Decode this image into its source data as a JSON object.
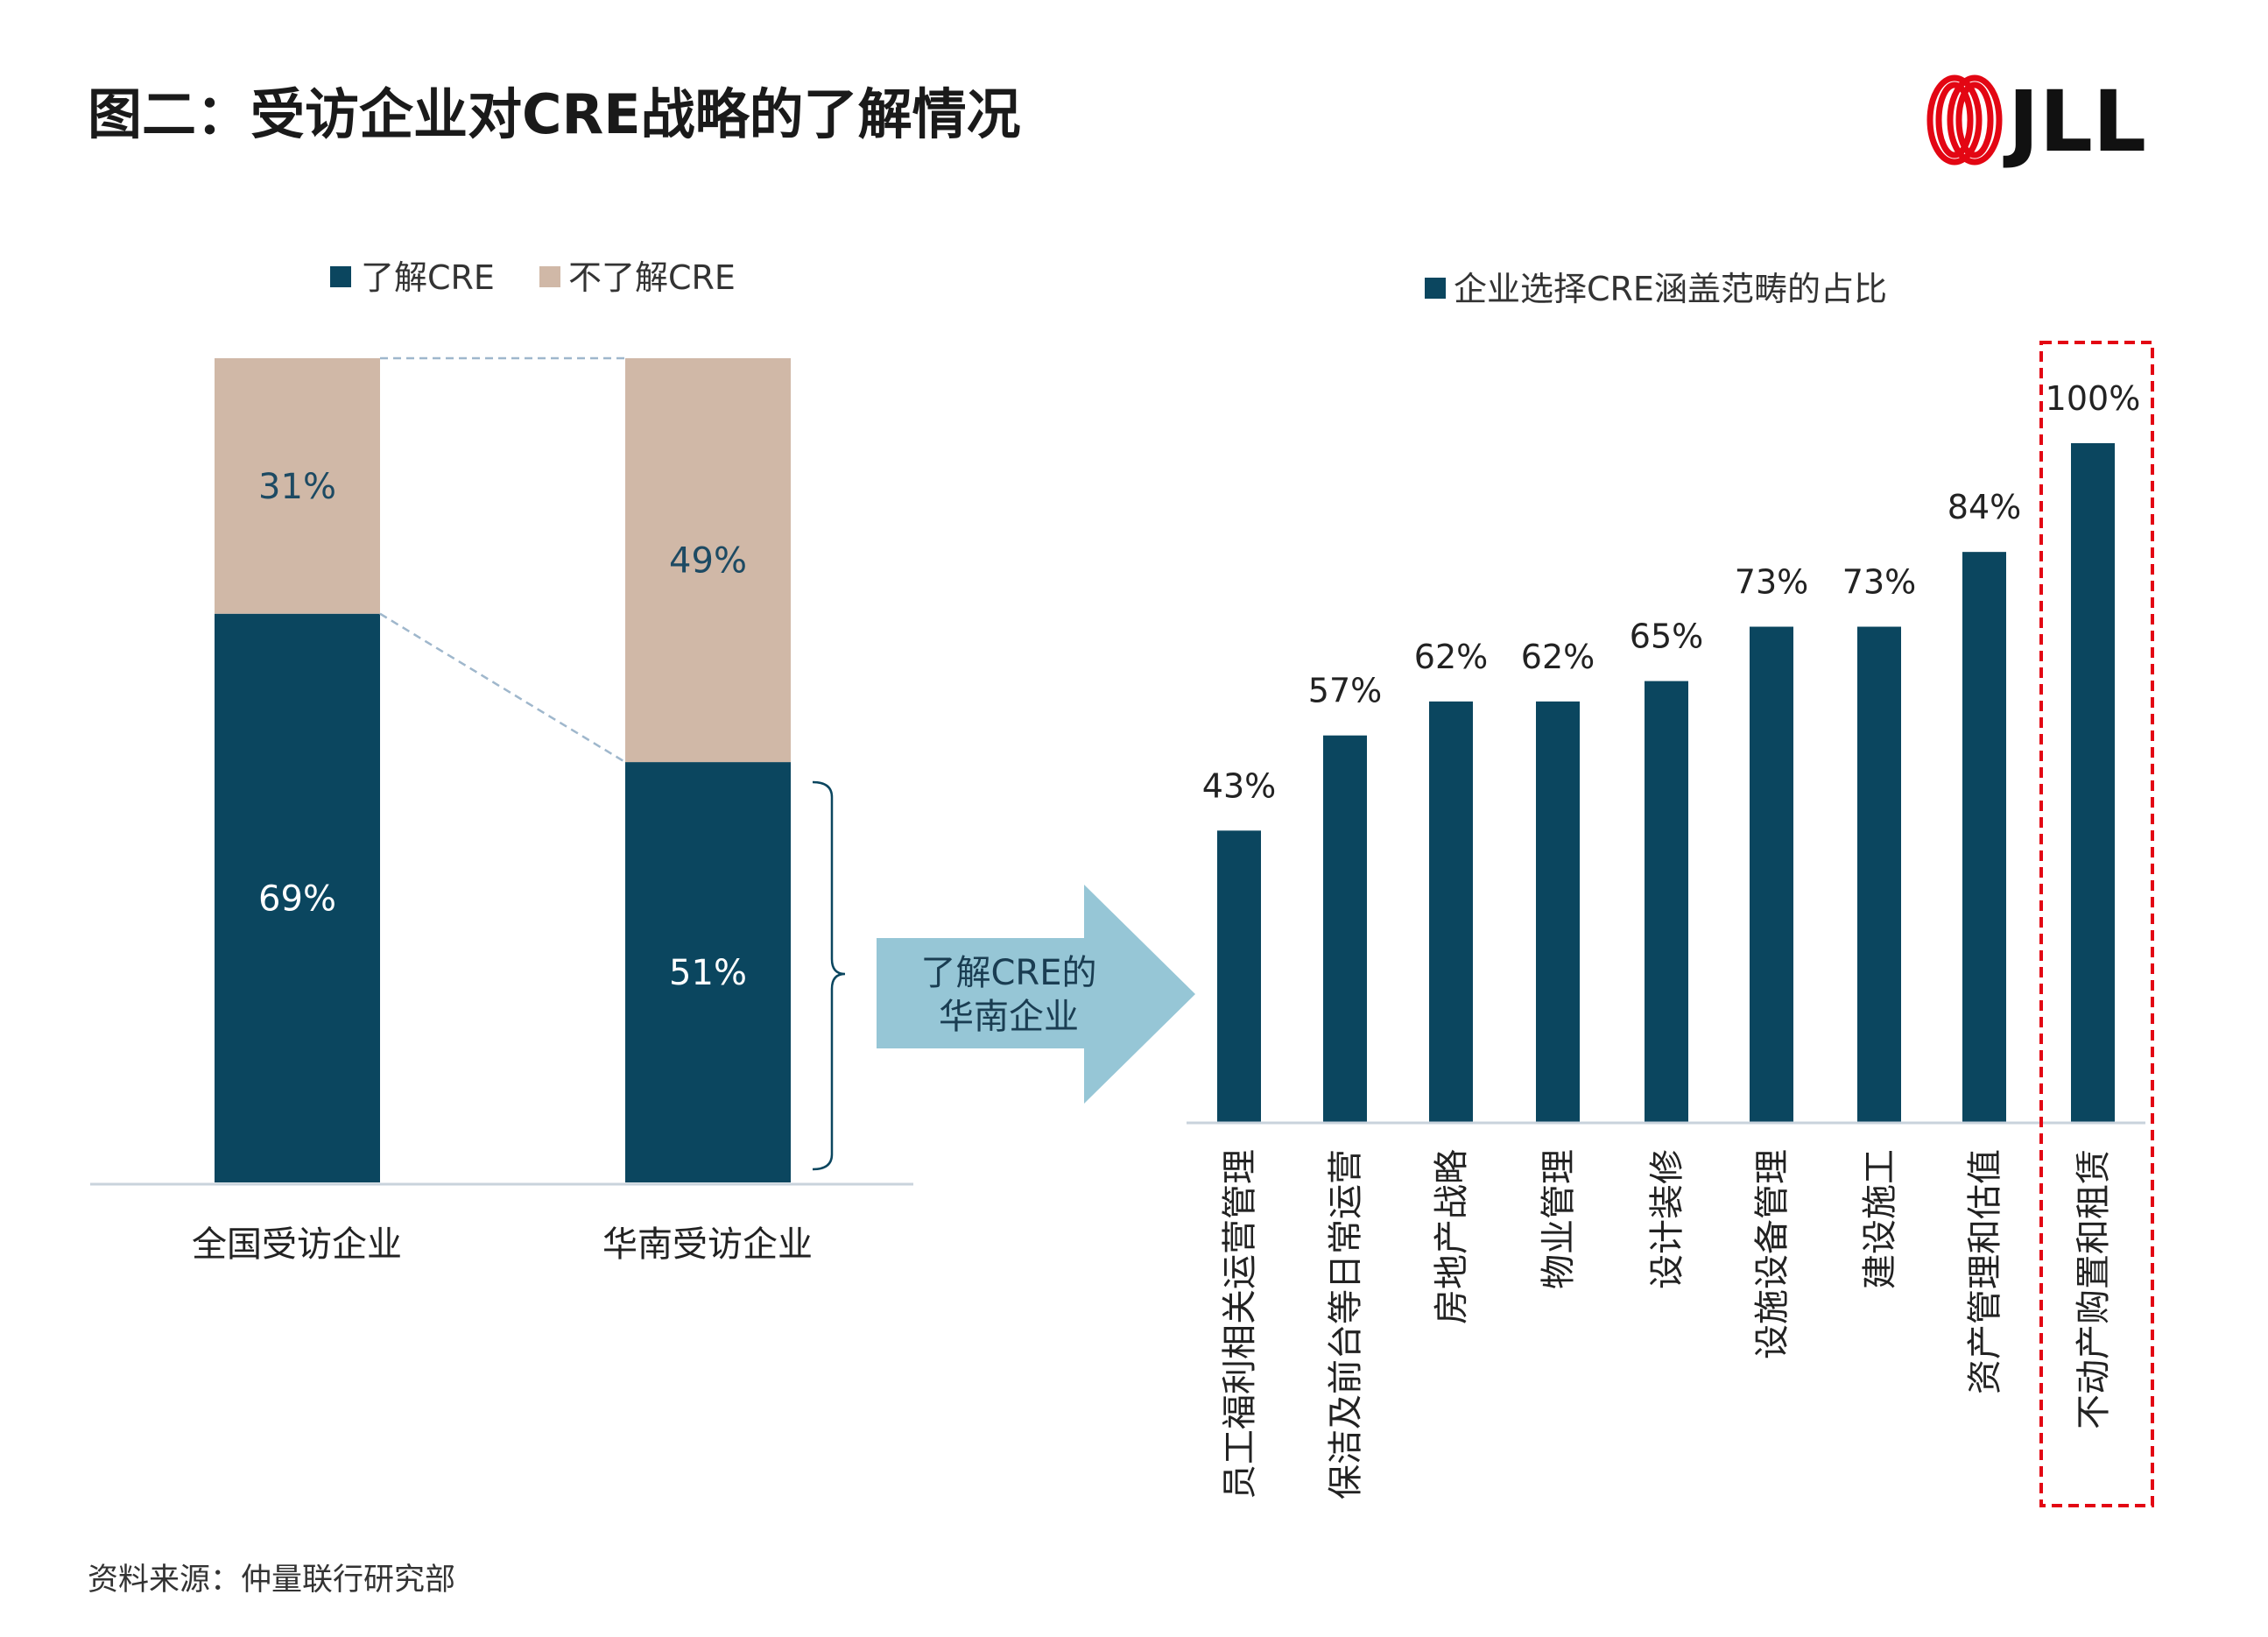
{
  "title": "图二：受访企业对CRE战略的了解情况",
  "logo": {
    "text": "JLL",
    "color": "#e30613"
  },
  "source": "资料来源：仲量联行研究部",
  "colors": {
    "aware": "#0b465f",
    "unaware": "#d0b8a7",
    "arrow": "#96c6d6",
    "highlight": "#e30613"
  },
  "callout": {
    "line1": "了解CRE的",
    "line2": "华南企业"
  },
  "chart_data": [
    {
      "type": "bar",
      "stacked": true,
      "percent": true,
      "legend_position": "top",
      "categories": [
        "全国受访企业",
        "华南受访企业"
      ],
      "series": [
        {
          "name": "了解CRE",
          "values": [
            69,
            51
          ],
          "labels": [
            "69%",
            "51%"
          ]
        },
        {
          "name": "不了解CRE",
          "values": [
            31,
            49
          ],
          "labels": [
            "31%",
            "49%"
          ]
        }
      ],
      "ylim": [
        0,
        100
      ],
      "grid": false
    },
    {
      "type": "bar",
      "legend_position": "top",
      "series": [
        {
          "name": "企业选择CRE涵盖范畴的占比"
        }
      ],
      "categories": [
        "员工福利相关运营管理",
        "保洁及前台等日常运营",
        "房地产战略",
        "物业管理",
        "设计装修",
        "设施设备管理",
        "建设施工",
        "资产管理和估值",
        "不动产购置和租赁"
      ],
      "values": [
        43,
        57,
        62,
        62,
        65,
        73,
        73,
        84,
        100
      ],
      "labels": [
        "43%",
        "57%",
        "62%",
        "62%",
        "65%",
        "73%",
        "73%",
        "84%",
        "100%"
      ],
      "highlighted_category": "不动产购置和租赁",
      "ylim": [
        0,
        100
      ],
      "grid": false
    }
  ]
}
